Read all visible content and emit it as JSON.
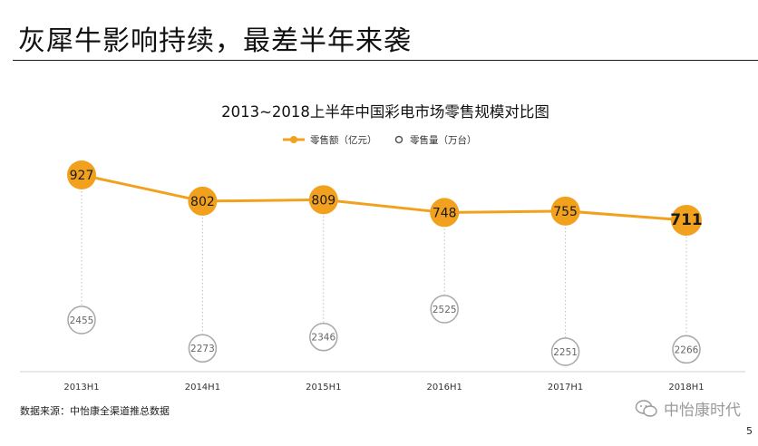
{
  "slide": {
    "title": "灰犀牛影响持续，最差半年来袭",
    "source": "数据来源：中怡康全渠道推总数据",
    "watermark": "中怡康时代",
    "page_number": "5"
  },
  "colors": {
    "amount": "#F2A11F",
    "volume_stroke": "#A8A8A8",
    "axis": "#D0D0D0",
    "leader": "#BDBDBD"
  },
  "chart_data": {
    "type": "line",
    "title": "2013~2018上半年中国彩电市场零售规模对比图",
    "categories": [
      "2013H1",
      "2014H1",
      "2015H1",
      "2016H1",
      "2017H1",
      "2018H1"
    ],
    "series": [
      {
        "name": "零售额（亿元）",
        "values": [
          927,
          802,
          809,
          748,
          755,
          711
        ],
        "style": "line-with-filled-circle-markers"
      },
      {
        "name": "零售量（万台）",
        "values": [
          2455,
          2273,
          2346,
          2525,
          2251,
          2266
        ],
        "style": "open-circle-markers-no-line"
      }
    ],
    "highlight_last_point": true,
    "legend_position": "top-center",
    "grid": false
  }
}
